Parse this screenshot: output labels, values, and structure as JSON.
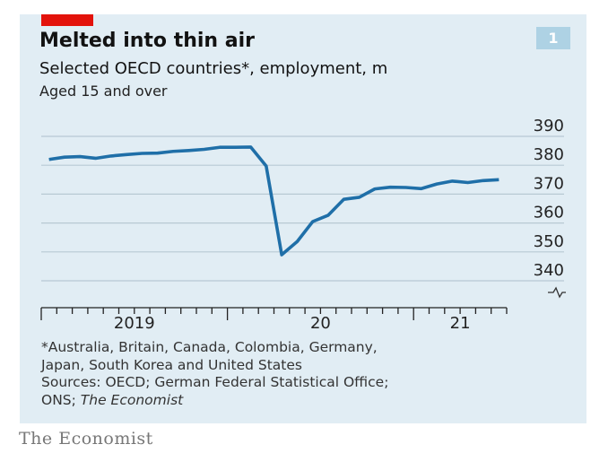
{
  "header": {
    "title": "Melted into thin air",
    "subtitle": "Selected OECD countries*, employment, m",
    "subsubtitle": "Aged 15 and over",
    "chart_number": "1",
    "accent_color": "#e3120b",
    "background_color": "#e1edf4"
  },
  "chart_data": {
    "type": "line",
    "title": "Melted into thin air",
    "ylabel": "Selected OECD countries*, employment, m",
    "ylim": [
      340,
      390
    ],
    "yticks": [
      "390",
      "380",
      "370",
      "360",
      "350",
      "340"
    ],
    "y_axis_broken": true,
    "y_axis_position": "right",
    "grid": true,
    "xlabels": [
      "2019",
      "20",
      "21"
    ],
    "x_range": [
      "2019-01",
      "2021-07"
    ],
    "line_color": "#1f6fa8",
    "series": [
      {
        "x": [
          "2019-01",
          "2019-02",
          "2019-03",
          "2019-04",
          "2019-05",
          "2019-06",
          "2019-07",
          "2019-08",
          "2019-09",
          "2019-10",
          "2019-11",
          "2019-12",
          "2020-01",
          "2020-02",
          "2020-03",
          "2020-04",
          "2020-05",
          "2020-06",
          "2020-07",
          "2020-08",
          "2020-09",
          "2020-10",
          "2020-11",
          "2020-12",
          "2021-01",
          "2021-02",
          "2021-03",
          "2021-04",
          "2021-05",
          "2021-06"
        ],
        "values": [
          382.0,
          382.8,
          383.0,
          382.4,
          383.2,
          383.7,
          384.1,
          384.2,
          384.8,
          385.1,
          385.5,
          386.2,
          386.2,
          386.3,
          379.7,
          349.0,
          353.6,
          360.5,
          362.7,
          368.2,
          368.9,
          371.8,
          372.4,
          372.3,
          371.9,
          373.5,
          374.5,
          374.0,
          374.7,
          375.0
        ]
      }
    ]
  },
  "footnotes": {
    "note_line1": "*Australia, Britain, Canada, Colombia, Germany,",
    "note_line2": "Japan, South Korea and United States",
    "sources_line1": "Sources: OECD; German Federal Statistical Office;",
    "sources_line2_prefix": "ONS; ",
    "sources_line2_italic": "The Economist"
  },
  "logo": "The Economist"
}
